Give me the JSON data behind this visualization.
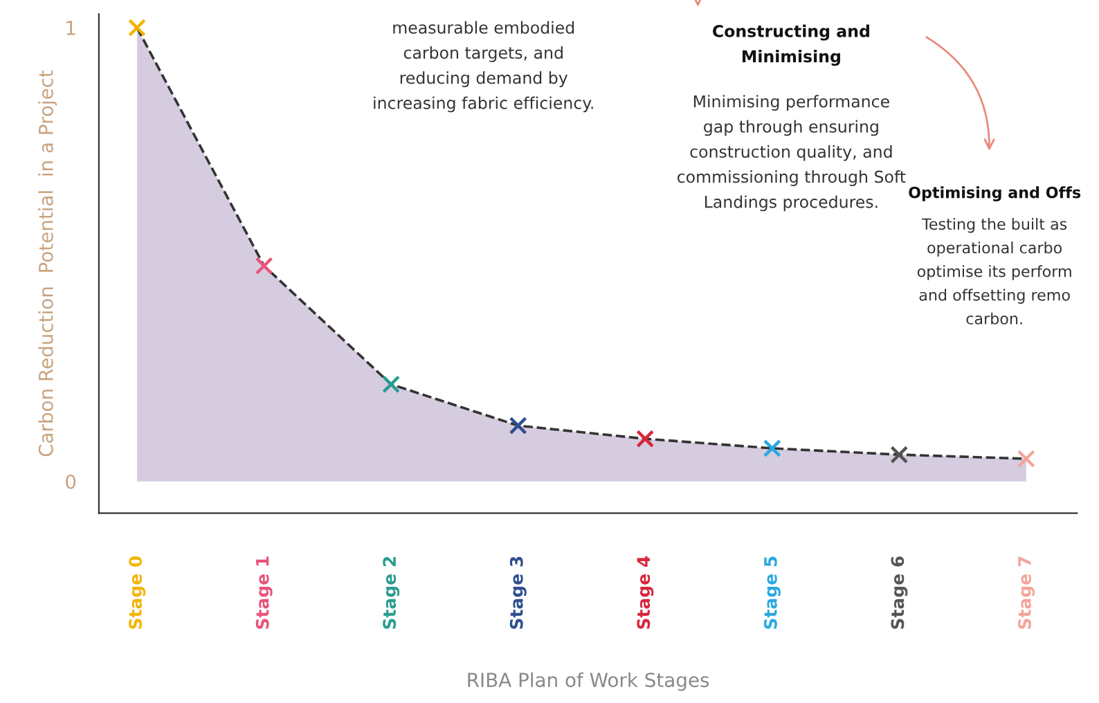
{
  "chart_data": {
    "type": "area",
    "categories": [
      "Stage 0",
      "Stage 1",
      "Stage 2",
      "Stage 3",
      "Stage 4",
      "Stage 5",
      "Stage 6",
      "Stage 7"
    ],
    "xlabel": "RIBA Plan of Work Stages",
    "ylabel": "Carbon Reduction  Potential  in a Project",
    "ylim": [
      -0.07,
      1.03
    ],
    "yticks": [
      0,
      1
    ],
    "grid": false,
    "legend": false,
    "series": [
      {
        "color": "#d6cce0",
        "line_style": "dashed",
        "values": [
          1,
          0.475,
          0.214,
          0.123,
          0.094,
          0.073,
          0.059,
          0.05
        ]
      },
      {
        "type": "scatter",
        "marker": "cross",
        "values": [
          1,
          0.475,
          0.214,
          0.123,
          0.094,
          0.073,
          0.059,
          0.05
        ],
        "colors": [
          "#f2b400",
          "#e8547a",
          "#2a9d8f",
          "#2f4f8f",
          "#d7263d",
          "#29a8e0",
          "#555555",
          "#f4a39a"
        ]
      }
    ],
    "annotations": [
      "measurable embodied\ncarbon targets, and\nreducing demand by\nincreasing fabric efficiency.",
      "Constructing and\nMinimising",
      "Minimising performance\ngap through ensuring\nconstruction quality, and\ncommissioning through Soft\nLandings procedures.",
      "Optimising and Offs",
      "Testing the built as\noperational carbo\noptimise its perform\nand offsetting remo\ncarbon."
    ]
  }
}
